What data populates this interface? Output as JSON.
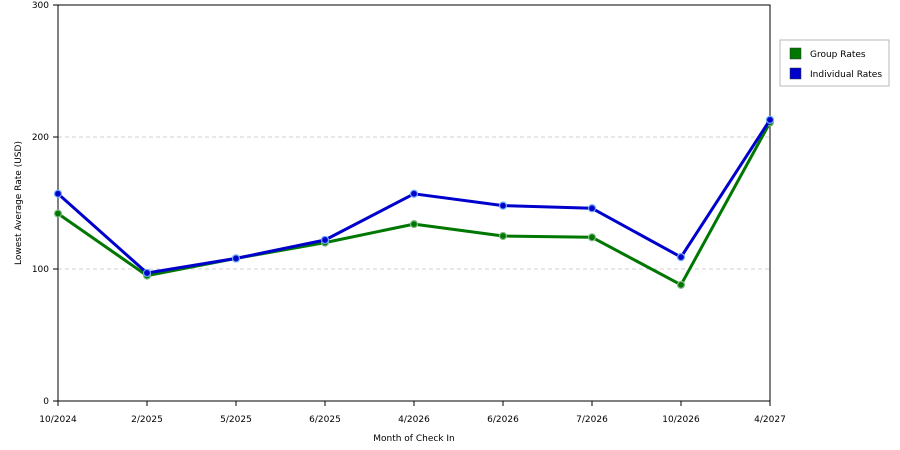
{
  "chart_data": {
    "type": "line",
    "title": "",
    "xlabel": "Month of Check In",
    "ylabel": "Lowest Average Rate (USD)",
    "categories": [
      "10/2024",
      "2/2025",
      "5/2025",
      "6/2025",
      "4/2026",
      "6/2026",
      "7/2026",
      "10/2026",
      "4/2027"
    ],
    "ylim": [
      0,
      300
    ],
    "yticks": [
      "0",
      "100",
      "200",
      "300"
    ],
    "grid": "horizontal dashed",
    "legend_position": "right",
    "series": [
      {
        "name": "Group Rates",
        "color": "#007700",
        "values": [
          142,
          95,
          108,
          120,
          134,
          125,
          124,
          88,
          211
        ]
      },
      {
        "name": "Individual Rates",
        "color": "#0000cc",
        "values": [
          157,
          97,
          108,
          122,
          157,
          148,
          146,
          109,
          213
        ]
      }
    ]
  }
}
